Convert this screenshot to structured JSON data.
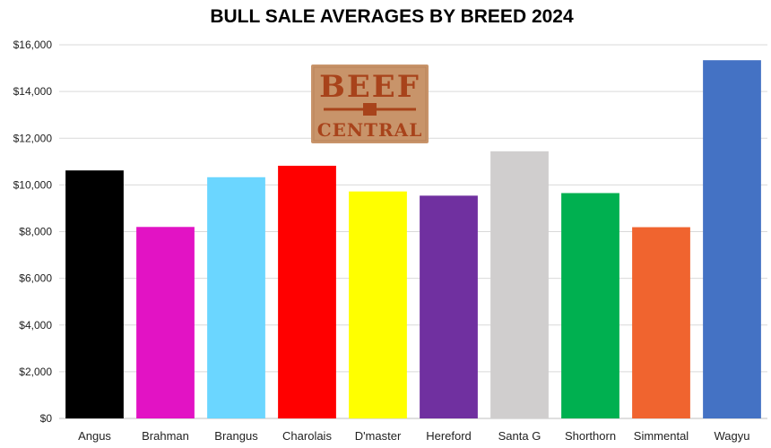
{
  "chart_data": {
    "type": "bar",
    "title": "BULL SALE AVERAGES BY BREED 2024",
    "xlabel": "",
    "ylabel": "",
    "categories": [
      "Angus",
      "Brahman",
      "Brangus",
      "Charolais",
      "D'master",
      "Hereford",
      "Santa G",
      "Shorthorn",
      "Simmental",
      "Wagyu"
    ],
    "values": [
      10620,
      8200,
      10330,
      10820,
      9720,
      9540,
      11440,
      9650,
      8190,
      15340
    ],
    "colors": [
      "#000000",
      "#e213c4",
      "#6bd6ff",
      "#ff0000",
      "#ffff00",
      "#7030a0",
      "#d0cece",
      "#00b050",
      "#f0642f",
      "#4472c4"
    ],
    "ylim": [
      0,
      16000
    ],
    "yticks": [
      "$0",
      "$2,000",
      "$4,000",
      "$6,000",
      "$8,000",
      "$10,000",
      "$12,000",
      "$14,000",
      "$16,000"
    ],
    "grid": true,
    "legend": "none"
  },
  "logo": {
    "line1": "BEEF",
    "line2": "CENTRAL",
    "background": "#c8946a",
    "text_color": "#a8431b"
  }
}
